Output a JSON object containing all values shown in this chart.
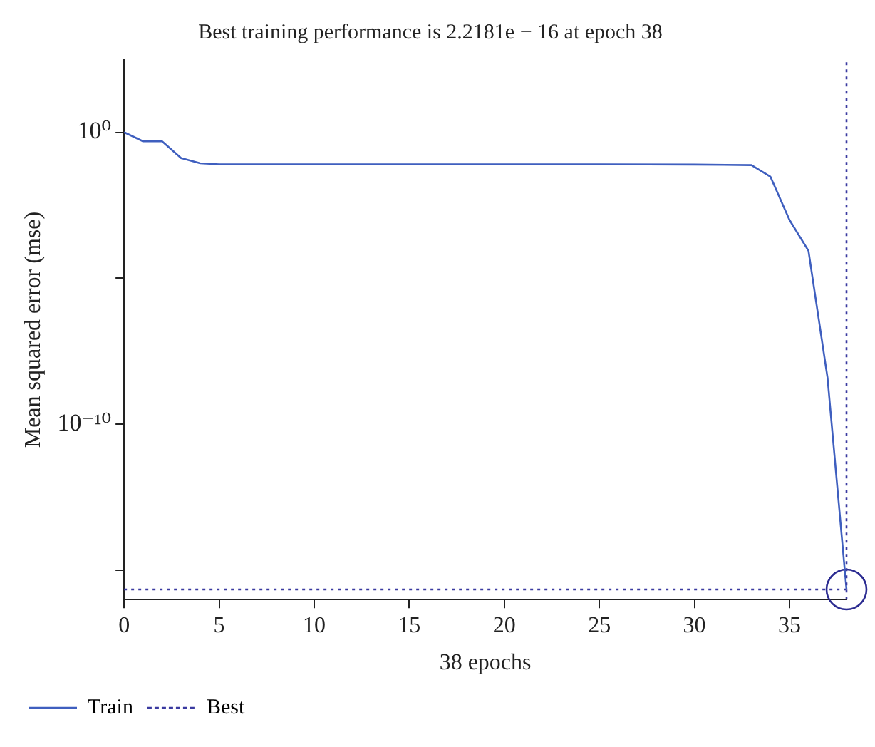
{
  "chart_data": {
    "type": "line",
    "title": "Best training performance is 2.2181e − 16 at epoch 38",
    "xlabel": "38 epochs",
    "ylabel": "Mean squared error (mse)",
    "log": "y",
    "xlim": [
      0,
      38
    ],
    "xticks": [
      0,
      5,
      10,
      15,
      20,
      25,
      30,
      35
    ],
    "ylim": [
      1e-16,
      300
    ],
    "yticks": [
      {
        "value": 1,
        "label": "10⁰"
      },
      {
        "value": 1e-05,
        "label": null
      },
      {
        "value": 1e-10,
        "label": "10⁻¹⁰"
      },
      {
        "value": 1e-15,
        "label": null
      }
    ],
    "grid": false,
    "legend": "bottom left",
    "ref_lines": [
      {
        "axis": "y",
        "value": 2.2181e-16,
        "label": "Best",
        "color": "#3a3aa0",
        "line_style": "dotted"
      },
      {
        "axis": "x",
        "value": 38,
        "color": "#3a3aa0",
        "line_style": "dotted"
      }
    ],
    "series": [
      {
        "name": "Train",
        "color": "#3f5fbf",
        "line_style": "solid",
        "x": [
          0,
          1,
          2,
          3,
          4,
          5,
          10,
          15,
          20,
          25,
          30,
          33,
          34,
          35,
          36,
          37,
          38
        ],
        "values": [
          1,
          0.49,
          0.49,
          0.13,
          0.087,
          0.08,
          0.08,
          0.08,
          0.08,
          0.08,
          0.078,
          0.075,
          0.03,
          0.001,
          8.7e-05,
          4e-09,
          2.2181e-16
        ]
      },
      {
        "type": "scatter",
        "color": "#2a2a90",
        "marker": "circle",
        "x": [
          38
        ],
        "values": [
          2.2181e-16
        ]
      }
    ]
  }
}
